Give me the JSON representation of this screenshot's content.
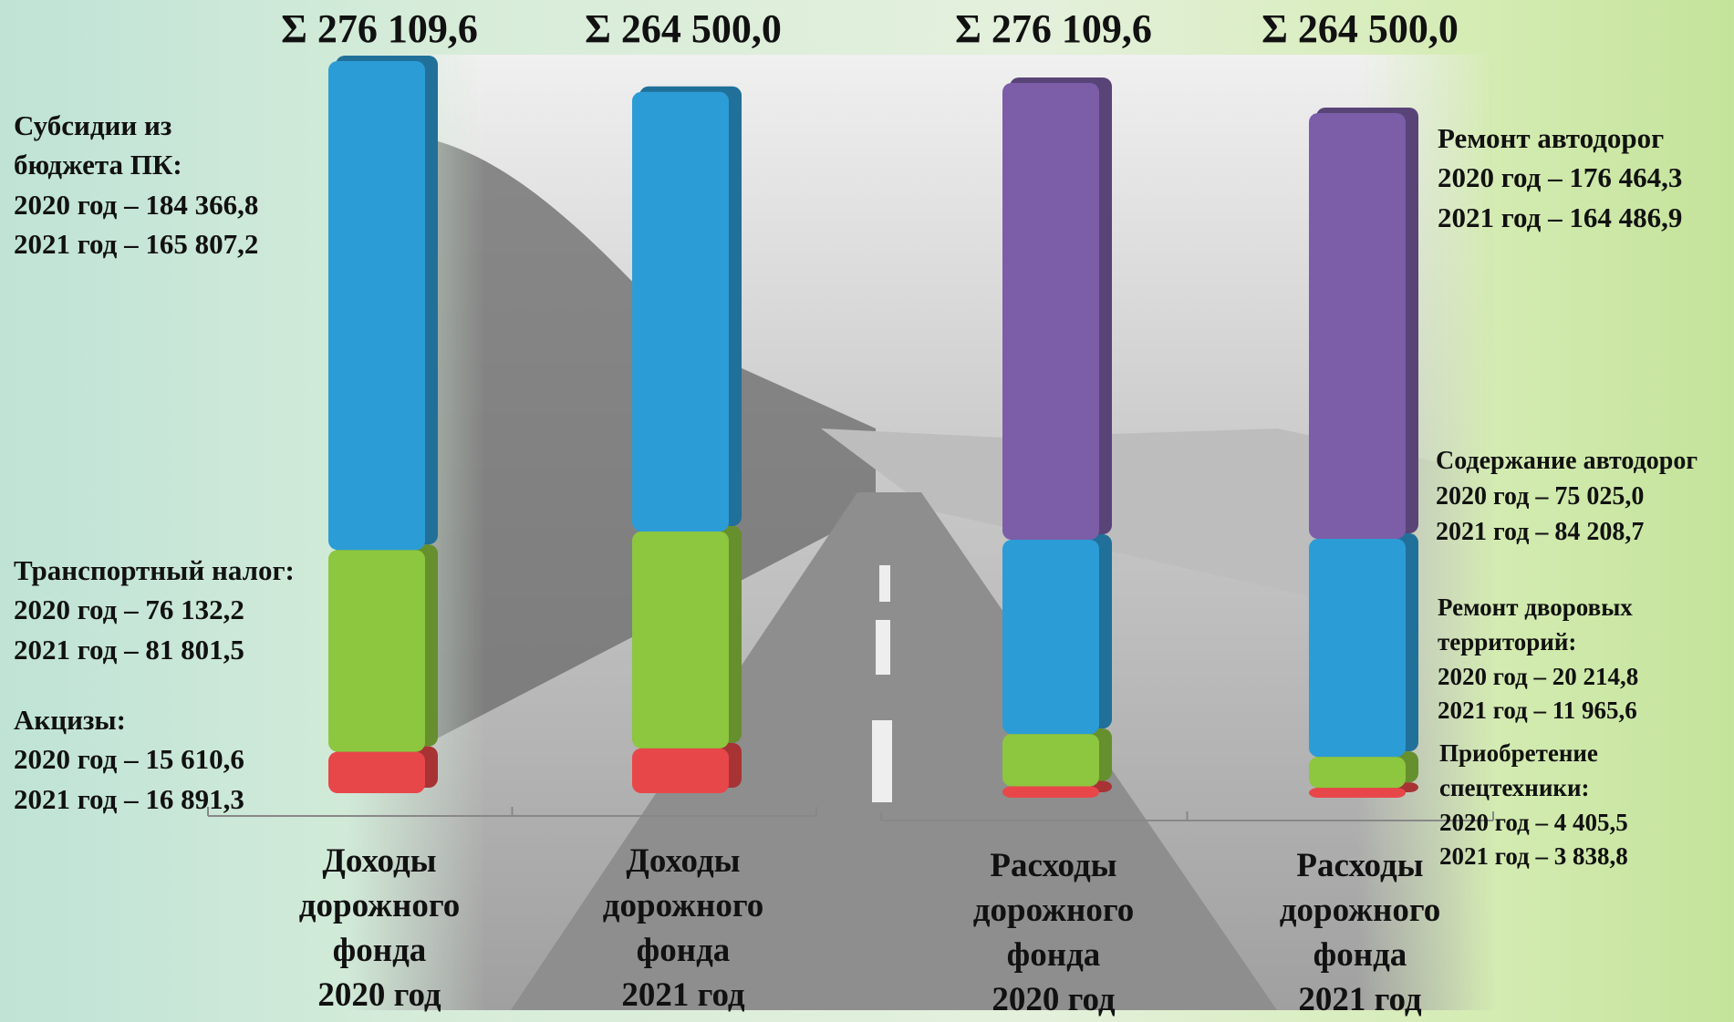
{
  "chart_data": [
    {
      "type": "bar",
      "stacked": true,
      "categories": [
        "Доходы дорожного фонда 2020 год",
        "Доходы дорожного фонда 2021 год"
      ],
      "total_labels": [
        "Σ 276 109,6",
        "Σ 264 500,0"
      ],
      "series": [
        {
          "name": "Акцизы:",
          "color": "#e8474a",
          "values": [
            15610.6,
            16891.3
          ],
          "value_labels": [
            "2020 год – 15 610,6",
            "2021 год – 16 891,3"
          ]
        },
        {
          "name": "Транспортный налог:",
          "color": "#8dc63f",
          "values": [
            76132.2,
            81801.5
          ],
          "value_labels": [
            "2020 год – 76 132,2",
            "2021 год – 81 801,5"
          ]
        },
        {
          "name": "Субсидии из бюджета ПК:",
          "color": "#2c9cd6",
          "values": [
            184366.8,
            165807.2
          ],
          "value_labels": [
            "2020 год – 184 366,8",
            "2021 год – 165 807,2"
          ]
        }
      ]
    },
    {
      "type": "bar",
      "stacked": true,
      "categories": [
        "Расходы дорожного фонда 2020 год",
        "Расходы дорожного фонда 2021 год"
      ],
      "total_labels": [
        "Σ 276 109,6",
        "Σ 264 500,0"
      ],
      "series": [
        {
          "name": "Приобретение спецтехники:",
          "color": "#e8474a",
          "values": [
            4405.5,
            3838.8
          ],
          "value_labels": [
            "2020 год – 4 405,5",
            "2021 год – 3 838,8"
          ]
        },
        {
          "name": "Ремонт дворовых территорий:",
          "color": "#8dc63f",
          "values": [
            20214.8,
            11965.6
          ],
          "value_labels": [
            "2020 год – 20 214,8",
            "2021 год – 11 965,6"
          ]
        },
        {
          "name": "Содержание автодорог",
          "color": "#2c9cd6",
          "values": [
            75025.0,
            84208.7
          ],
          "value_labels": [
            "2020 год – 75 025,0",
            "2021 год – 84 208,7"
          ]
        },
        {
          "name": "Ремонт автодорог",
          "color": "#7b5ea7",
          "values": [
            176464.3,
            164486.9
          ],
          "value_labels": [
            "2020 год – 176 464,3",
            "2021 год – 164 486,9"
          ]
        }
      ]
    }
  ]
}
